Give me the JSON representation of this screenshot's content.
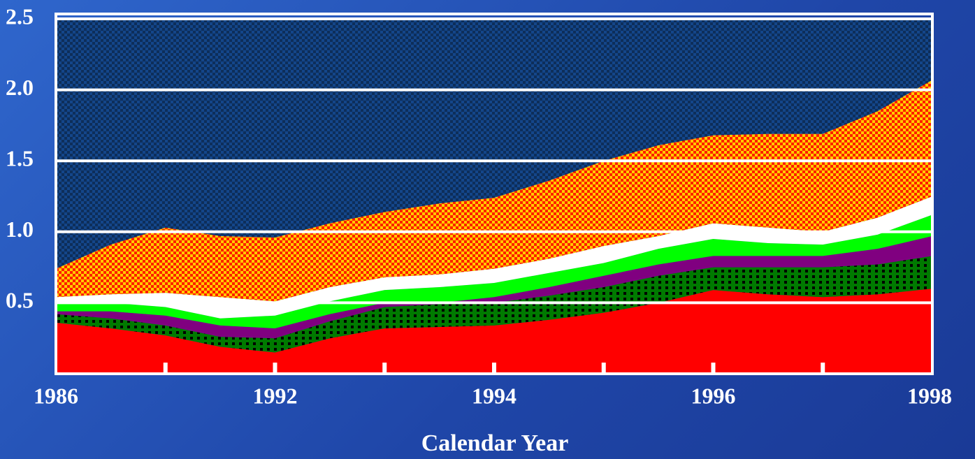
{
  "chart_data": {
    "type": "stacked_area",
    "x_label": "Calendar Year",
    "categories": [
      "1986",
      null,
      null,
      null,
      "1992",
      null,
      null,
      null,
      "1994",
      null,
      null,
      null,
      "1996",
      null,
      null,
      null,
      "1998"
    ],
    "ylim": [
      0,
      2.5
    ],
    "yticks": [
      0.5,
      {
        "value": 1,
        "label": "1.0"
      },
      {
        "value": 1.5,
        "label": "1.5"
      },
      {
        "value": 2,
        "label": "2.0"
      },
      2.5
    ],
    "grid": true,
    "series": [
      {
        "color": "#ff0000",
        "values": [
          0.36,
          0.32,
          0.27,
          0.19,
          0.15,
          0.25,
          0.32,
          0.33,
          0.34,
          0.38,
          0.43,
          0.5,
          0.59,
          0.56,
          0.54,
          0.56,
          0.6
        ]
      },
      {
        "color": "#007a00",
        "values": [
          0.06,
          0.07,
          0.07,
          0.07,
          0.1,
          0.12,
          0.15,
          0.16,
          0.16,
          0.17,
          0.18,
          0.19,
          0.16,
          0.19,
          0.21,
          0.21,
          0.23
        ]
      },
      {
        "color": "#800080",
        "values": [
          0.02,
          0.05,
          0.07,
          0.08,
          0.07,
          0.05,
          0.03,
          0.01,
          0.04,
          0.06,
          0.08,
          0.08,
          0.08,
          0.08,
          0.08,
          0.11,
          0.14
        ]
      },
      {
        "color": "#00ff00",
        "values": [
          0.06,
          0.06,
          0.06,
          0.05,
          0.09,
          0.09,
          0.09,
          0.11,
          0.1,
          0.1,
          0.09,
          0.11,
          0.12,
          0.09,
          0.08,
          0.1,
          0.15
        ]
      },
      {
        "color": "#ffffff",
        "values": [
          0.04,
          0.06,
          0.1,
          0.15,
          0.1,
          0.1,
          0.09,
          0.09,
          0.1,
          0.1,
          0.12,
          0.09,
          0.11,
          0.11,
          0.09,
          0.12,
          0.13
        ]
      },
      {
        "color": "#ffcc00",
        "values": [
          0.2,
          0.35,
          0.46,
          0.43,
          0.45,
          0.45,
          0.46,
          0.5,
          0.5,
          0.55,
          0.6,
          0.64,
          0.62,
          0.66,
          0.69,
          0.75,
          0.82
        ]
      },
      {
        "color": "#14468a",
        "values": [
          1.76,
          1.59,
          1.47,
          1.53,
          1.54,
          1.44,
          1.36,
          1.3,
          1.26,
          1.14,
          1.0,
          0.89,
          0.82,
          0.81,
          0.81,
          0.65,
          0.43
        ]
      }
    ]
  }
}
